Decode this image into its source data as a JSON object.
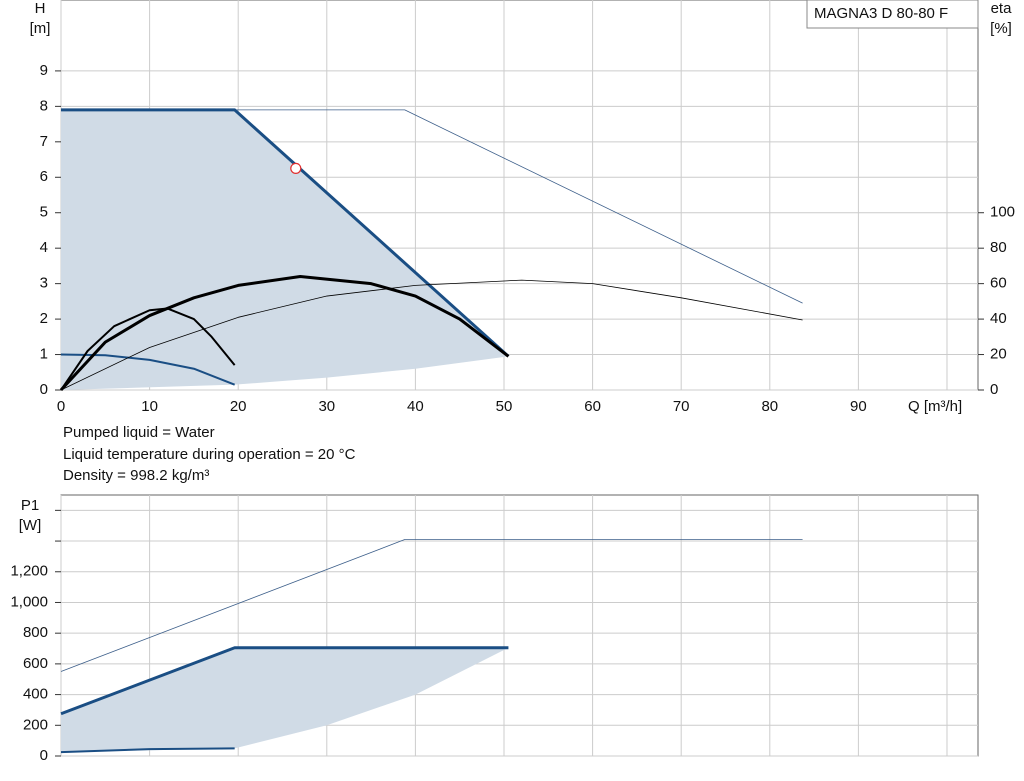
{
  "chart_data": [
    {
      "type": "line",
      "title": "MAGNA3 D 80-80 F",
      "xlabel": "Q [m³/h]",
      "ylabel": "H",
      "yunit": "[m]",
      "y2label": "eta",
      "y2unit": "[%]",
      "xlim": [
        0,
        103.5
      ],
      "xticks": [
        0,
        10,
        20,
        30,
        40,
        50,
        60,
        70,
        80,
        90,
        {
          "value": 100,
          "label": null
        }
      ],
      "ylim": [
        0,
        11
      ],
      "yticks": [
        0,
        1,
        2,
        3,
        4,
        5,
        6,
        7,
        8,
        9
      ],
      "y2lim": [
        0,
        220
      ],
      "y2ticks": [
        0,
        20,
        40,
        60,
        80,
        100
      ],
      "grid": true,
      "annotations": [
        "Pumped liquid = Water",
        "Liquid temperature during operation = 20 °C",
        "Density = 998.2 kg/m³"
      ],
      "series": [
        {
          "kind": "area",
          "color": "#d0dbe6",
          "x": [
            0,
            19.6,
            50.5,
            40,
            30,
            19.6,
            0
          ],
          "values": [
            7.9,
            7.9,
            0.95,
            0.6,
            0.35,
            0.15,
            0
          ]
        },
        {
          "kind": "line",
          "color": "#3d5f8a",
          "width": 0.8,
          "x": [
            0,
            38.8,
            83.7
          ],
          "values": [
            7.9,
            7.9,
            2.45
          ]
        },
        {
          "kind": "line",
          "color": "#1a4e84",
          "width": 3,
          "x": [
            0,
            19.6,
            50.5
          ],
          "values": [
            7.9,
            7.9,
            0.95
          ]
        },
        {
          "kind": "line",
          "color": "#1a4e84",
          "width": 2,
          "x": [
            0,
            5,
            10,
            15,
            19.6
          ],
          "values": [
            1.0,
            0.98,
            0.85,
            0.6,
            0.15
          ]
        },
        {
          "kind": "line",
          "color": "#000000",
          "width": 0.8,
          "axis": "y2",
          "x": [
            0,
            10,
            20,
            30,
            40,
            52,
            60,
            70,
            83.7
          ],
          "values": [
            0,
            24,
            41,
            53,
            59,
            62,
            60,
            52,
            39.5
          ]
        },
        {
          "kind": "line",
          "color": "#000000",
          "width": 2,
          "axis": "y2",
          "x": [
            0,
            3,
            6,
            10,
            12,
            15,
            17,
            19.6
          ],
          "values": [
            0,
            22,
            36,
            45,
            46,
            40,
            30,
            14
          ]
        },
        {
          "kind": "line",
          "color": "#000000",
          "width": 3,
          "axis": "y2",
          "x": [
            0,
            5,
            10,
            15,
            20,
            27,
            35,
            40,
            45,
            50.5
          ],
          "values": [
            0,
            27,
            42,
            52,
            59,
            64,
            60,
            53,
            40,
            19
          ]
        },
        {
          "kind": "point",
          "color": "#e03030",
          "x": [
            26.5
          ],
          "values": [
            6.25
          ]
        }
      ]
    },
    {
      "type": "line",
      "ylabel": "P1",
      "yunit": "[W]",
      "xlim": [
        0,
        103.5
      ],
      "ylim": [
        0,
        1700
      ],
      "yticks": [
        0,
        200,
        400,
        600,
        800,
        {
          "value": 1000,
          "label": "1,000"
        },
        {
          "value": 1200,
          "label": "1,200"
        },
        {
          "value": 1400,
          "label": null
        },
        {
          "value": 1600,
          "label": null
        }
      ],
      "grid": true,
      "series": [
        {
          "kind": "area",
          "color": "#d0dbe6",
          "x": [
            0,
            19.6,
            50.5,
            40,
            30,
            19.6,
            0
          ],
          "values": [
            275,
            705,
            705,
            400,
            200,
            50,
            25
          ]
        },
        {
          "kind": "line",
          "color": "#3d5f8a",
          "width": 0.8,
          "x": [
            0,
            38.8,
            83.7
          ],
          "values": [
            550,
            1410,
            1410
          ]
        },
        {
          "kind": "line",
          "color": "#1a4e84",
          "width": 3,
          "x": [
            0,
            19.6,
            50.5
          ],
          "values": [
            275,
            705,
            705
          ]
        },
        {
          "kind": "line",
          "color": "#1a4e84",
          "width": 2,
          "x": [
            0,
            10,
            19.6
          ],
          "values": [
            25,
            45,
            50
          ]
        }
      ]
    }
  ]
}
